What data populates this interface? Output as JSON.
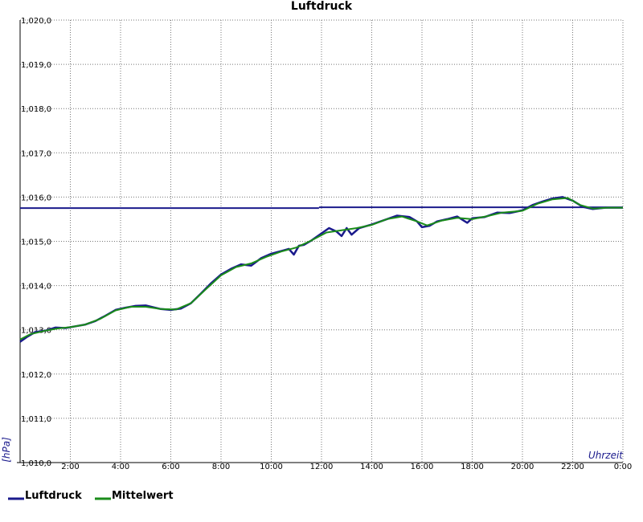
{
  "chart_data": {
    "type": "line",
    "title": "Luftdruck",
    "ylabel": "[hPa]",
    "xlabel": "Uhrzeit",
    "ylim": [
      1010.0,
      1020.0
    ],
    "xlim": [
      0,
      24
    ],
    "y_ticks": [
      {
        "value": 1010,
        "label": "1,010,0"
      },
      {
        "value": 1011,
        "label": "1,011,0"
      },
      {
        "value": 1012,
        "label": "1,012,0"
      },
      {
        "value": 1013,
        "label": "1,013,0"
      },
      {
        "value": 1014,
        "label": "1,014,0"
      },
      {
        "value": 1015,
        "label": "1,015,0"
      },
      {
        "value": 1016,
        "label": "1,016,0"
      },
      {
        "value": 1017,
        "label": "1,017,0"
      },
      {
        "value": 1018,
        "label": "1,018,0"
      },
      {
        "value": 1019,
        "label": "1,019,0"
      },
      {
        "value": 1020,
        "label": "1,020,0"
      }
    ],
    "x_ticks": [
      {
        "value": 2,
        "label": "2:00"
      },
      {
        "value": 4,
        "label": "4:00"
      },
      {
        "value": 6,
        "label": "6:00"
      },
      {
        "value": 8,
        "label": "8:00"
      },
      {
        "value": 10,
        "label": "10:00"
      },
      {
        "value": 12,
        "label": "12:00"
      },
      {
        "value": 14,
        "label": "14:00"
      },
      {
        "value": 16,
        "label": "16:00"
      },
      {
        "value": 18,
        "label": "18:00"
      },
      {
        "value": 20,
        "label": "20:00"
      },
      {
        "value": 22,
        "label": "22:00"
      },
      {
        "value": 24,
        "label": "0:00"
      }
    ],
    "grid": true,
    "legend_position": "bottom-left",
    "series": [
      {
        "name": "Luftdruck",
        "color": "#1a1a8c",
        "points": [
          [
            0.0,
            1012.73
          ],
          [
            0.3,
            1012.85
          ],
          [
            0.6,
            1012.95
          ],
          [
            1.0,
            1012.98
          ],
          [
            1.4,
            1013.05
          ],
          [
            1.8,
            1013.04
          ],
          [
            2.2,
            1013.08
          ],
          [
            2.6,
            1013.12
          ],
          [
            3.0,
            1013.2
          ],
          [
            3.4,
            1013.32
          ],
          [
            3.8,
            1013.45
          ],
          [
            4.2,
            1013.5
          ],
          [
            4.6,
            1013.54
          ],
          [
            5.0,
            1013.55
          ],
          [
            5.3,
            1013.51
          ],
          [
            5.6,
            1013.47
          ],
          [
            6.0,
            1013.45
          ],
          [
            6.4,
            1013.48
          ],
          [
            6.8,
            1013.6
          ],
          [
            7.2,
            1013.82
          ],
          [
            7.6,
            1014.05
          ],
          [
            8.0,
            1014.25
          ],
          [
            8.4,
            1014.38
          ],
          [
            8.8,
            1014.48
          ],
          [
            9.2,
            1014.45
          ],
          [
            9.6,
            1014.62
          ],
          [
            10.0,
            1014.72
          ],
          [
            10.4,
            1014.78
          ],
          [
            10.7,
            1014.83
          ],
          [
            10.9,
            1014.7
          ],
          [
            11.1,
            1014.9
          ],
          [
            11.3,
            1014.92
          ],
          [
            11.6,
            1015.02
          ],
          [
            12.0,
            1015.18
          ],
          [
            12.3,
            1015.3
          ],
          [
            12.6,
            1015.22
          ],
          [
            12.8,
            1015.12
          ],
          [
            13.0,
            1015.3
          ],
          [
            13.2,
            1015.15
          ],
          [
            13.5,
            1015.3
          ],
          [
            14.0,
            1015.38
          ],
          [
            14.5,
            1015.48
          ],
          [
            15.0,
            1015.58
          ],
          [
            15.5,
            1015.55
          ],
          [
            15.8,
            1015.45
          ],
          [
            16.0,
            1015.32
          ],
          [
            16.3,
            1015.35
          ],
          [
            16.6,
            1015.45
          ],
          [
            17.0,
            1015.5
          ],
          [
            17.4,
            1015.56
          ],
          [
            17.8,
            1015.42
          ],
          [
            18.0,
            1015.52
          ],
          [
            18.5,
            1015.55
          ],
          [
            19.0,
            1015.65
          ],
          [
            19.5,
            1015.64
          ],
          [
            20.0,
            1015.7
          ],
          [
            20.4,
            1015.82
          ],
          [
            20.8,
            1015.9
          ],
          [
            21.2,
            1015.97
          ],
          [
            21.6,
            1016.0
          ],
          [
            22.0,
            1015.92
          ],
          [
            22.4,
            1015.78
          ],
          [
            22.8,
            1015.73
          ],
          [
            23.3,
            1015.76
          ],
          [
            24.0,
            1015.76
          ]
        ]
      },
      {
        "name": "Mittelwert",
        "color": "#1a8c1a",
        "points": [
          [
            0.0,
            1012.78
          ],
          [
            0.4,
            1012.9
          ],
          [
            1.0,
            1012.98
          ],
          [
            1.5,
            1013.03
          ],
          [
            2.0,
            1013.06
          ],
          [
            2.6,
            1013.12
          ],
          [
            3.2,
            1013.25
          ],
          [
            3.8,
            1013.44
          ],
          [
            4.4,
            1013.52
          ],
          [
            5.0,
            1013.52
          ],
          [
            5.6,
            1013.47
          ],
          [
            6.2,
            1013.46
          ],
          [
            6.8,
            1013.6
          ],
          [
            7.4,
            1013.92
          ],
          [
            8.0,
            1014.23
          ],
          [
            8.6,
            1014.42
          ],
          [
            9.2,
            1014.5
          ],
          [
            9.8,
            1014.65
          ],
          [
            10.4,
            1014.77
          ],
          [
            11.0,
            1014.86
          ],
          [
            11.6,
            1015.02
          ],
          [
            12.2,
            1015.2
          ],
          [
            12.8,
            1015.25
          ],
          [
            13.4,
            1015.3
          ],
          [
            14.0,
            1015.37
          ],
          [
            14.6,
            1015.5
          ],
          [
            15.2,
            1015.56
          ],
          [
            15.8,
            1015.45
          ],
          [
            16.2,
            1015.36
          ],
          [
            16.8,
            1015.47
          ],
          [
            17.4,
            1015.53
          ],
          [
            18.0,
            1015.5
          ],
          [
            18.6,
            1015.57
          ],
          [
            19.2,
            1015.65
          ],
          [
            20.0,
            1015.69
          ],
          [
            20.6,
            1015.85
          ],
          [
            21.2,
            1015.95
          ],
          [
            21.8,
            1015.98
          ],
          [
            22.3,
            1015.82
          ],
          [
            22.8,
            1015.74
          ],
          [
            23.4,
            1015.76
          ],
          [
            24.0,
            1015.76
          ]
        ]
      }
    ],
    "reference_lines": [
      {
        "color": "#1a1a8c",
        "segments": [
          [
            0,
            11.9,
            1015.75
          ],
          [
            11.9,
            24,
            1015.77
          ]
        ]
      }
    ]
  }
}
